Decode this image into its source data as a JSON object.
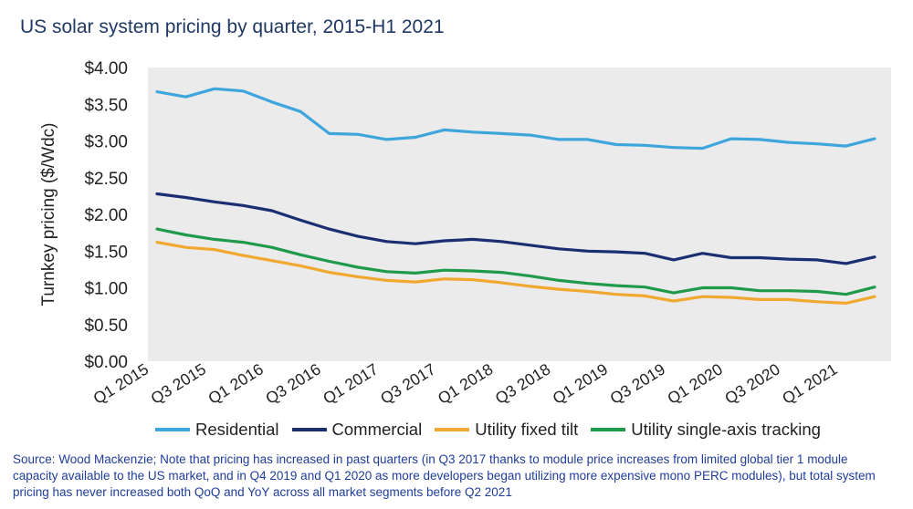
{
  "title": "US solar system pricing by quarter, 2015-H1 2021",
  "source": "Source: Wood Mackenzie; Note that pricing has increased in past quarters (in Q3 2017 thanks to module price increases from limited global tier 1 module capacity available to the US market, and in Q4 2019 and Q1 2020 as more developers began utilizing more expensive mono PERC modules), but total system pricing has never increased both QoQ and YoY across all market segments before Q2 2021",
  "chart_data": {
    "type": "line",
    "title": "US solar system pricing by quarter, 2015-H1 2021",
    "xlabel": "",
    "ylabel": "Turnkey pricing ($/Wdc)",
    "ylim": [
      0,
      4
    ],
    "grid": false,
    "legend_position": "bottom",
    "y_ticks": [
      "$0.00",
      "$0.50",
      "$1.00",
      "$1.50",
      "$2.00",
      "$2.50",
      "$3.00",
      "$3.50",
      "$4.00"
    ],
    "categories": [
      "Q1 2015",
      "Q2 2015",
      "Q3 2015",
      "Q4 2015",
      "Q1 2016",
      "Q2 2016",
      "Q3 2016",
      "Q4 2016",
      "Q1 2017",
      "Q2 2017",
      "Q3 2017",
      "Q4 2017",
      "Q1 2018",
      "Q2 2018",
      "Q3 2018",
      "Q4 2018",
      "Q1 2019",
      "Q2 2019",
      "Q3 2019",
      "Q4 2019",
      "Q1 2020",
      "Q2 2020",
      "Q3 2020",
      "Q4 2020",
      "Q1 2021",
      "Q2 2021"
    ],
    "tick_labels": [
      "Q1 2015",
      "Q3 2015",
      "Q1 2016",
      "Q3 2016",
      "Q1 2017",
      "Q3 2017",
      "Q1 2018",
      "Q3 2018",
      "Q1 2019",
      "Q3 2019",
      "Q1 2020",
      "Q3 2020",
      "Q1 2021"
    ],
    "series": [
      {
        "name": "Residential",
        "color": "#3ea6dc",
        "values": [
          3.67,
          3.6,
          3.71,
          3.68,
          3.53,
          3.4,
          3.1,
          3.09,
          3.02,
          3.05,
          3.15,
          3.12,
          3.1,
          3.08,
          3.02,
          3.02,
          2.95,
          2.94,
          2.91,
          2.9,
          3.03,
          3.02,
          2.98,
          2.96,
          2.93,
          3.03
        ]
      },
      {
        "name": "Commercial",
        "color": "#1a2e72",
        "values": [
          2.28,
          2.23,
          2.17,
          2.12,
          2.05,
          1.92,
          1.8,
          1.7,
          1.63,
          1.6,
          1.64,
          1.66,
          1.63,
          1.58,
          1.53,
          1.5,
          1.49,
          1.47,
          1.38,
          1.47,
          1.41,
          1.41,
          1.39,
          1.38,
          1.33,
          1.42
        ]
      },
      {
        "name": "Utility fixed tilt",
        "color": "#f0a830",
        "values": [
          1.62,
          1.55,
          1.52,
          1.44,
          1.37,
          1.3,
          1.21,
          1.15,
          1.1,
          1.08,
          1.12,
          1.11,
          1.07,
          1.02,
          0.98,
          0.95,
          0.91,
          0.89,
          0.82,
          0.88,
          0.87,
          0.84,
          0.84,
          0.81,
          0.79,
          0.88
        ]
      },
      {
        "name": "Utility single-axis tracking",
        "color": "#1f9a4a",
        "values": [
          1.8,
          1.72,
          1.66,
          1.62,
          1.55,
          1.45,
          1.36,
          1.28,
          1.22,
          1.2,
          1.24,
          1.23,
          1.21,
          1.16,
          1.1,
          1.06,
          1.03,
          1.01,
          0.93,
          1.0,
          1.0,
          0.96,
          0.96,
          0.95,
          0.91,
          1.01
        ]
      }
    ]
  }
}
